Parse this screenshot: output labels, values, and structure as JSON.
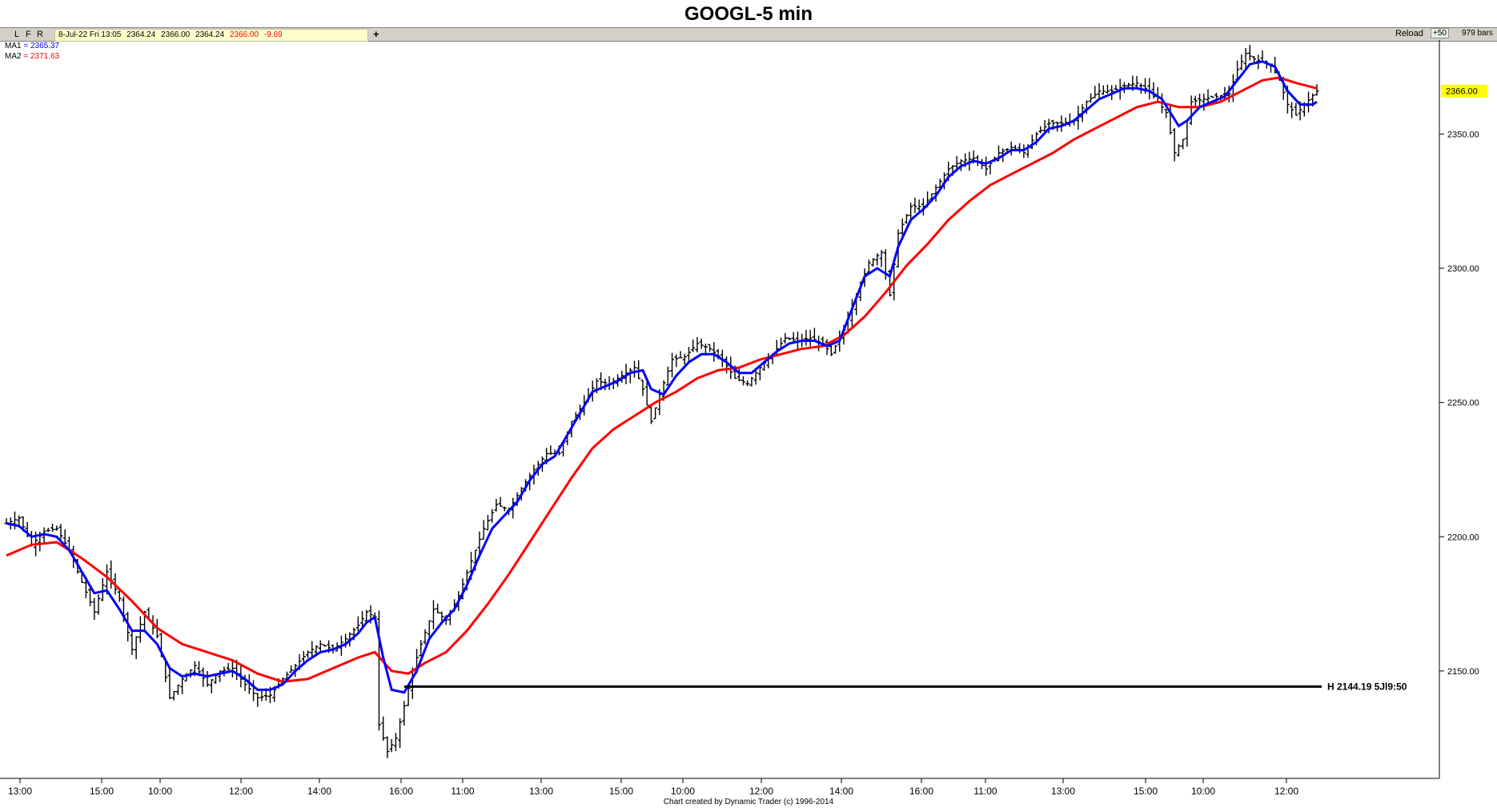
{
  "title": "GOOGL-5 min",
  "toolbar": {
    "buttons": [
      "L",
      "F",
      "R"
    ],
    "info": {
      "date": "8-Jul-22 Fri 13:05",
      "open": "2364.24",
      "high": "2366.00",
      "low": "2364.24",
      "close": "2366.00",
      "change": "-9.69"
    },
    "plus": "+",
    "reload": "Reload",
    "plus50": "+50",
    "bars": "979 bars"
  },
  "legend": {
    "ma1_label": "MA1",
    "ma1_value": "= 2365.37",
    "ma2_label": "MA2",
    "ma2_value": "= 2371.63"
  },
  "colors": {
    "price": "#000000",
    "ma1": "#0000ff",
    "ma2": "#ff0000",
    "price_tag_bg": "#ffff00"
  },
  "footer": "Chart created by Dynamic Trader  (c) 1996-2014",
  "chart_data": {
    "type": "bar",
    "ylim": [
      2110,
      2385
    ],
    "y_ticks": [
      2150,
      2200,
      2250,
      2300,
      2350
    ],
    "y_tick_labels": [
      "2150.00",
      "2200.00",
      "2250.00",
      "2300.00",
      "2350.00"
    ],
    "x_tick_labels": [
      "13:00",
      "15:00",
      "10:00",
      "12:00",
      "14:00",
      "16:00",
      "11:00",
      "13:00",
      "15:00",
      "10:00",
      "12:00",
      "14:00",
      "16:00",
      "11:00",
      "13:00",
      "15:00",
      "10:00",
      "12:00"
    ],
    "last_price_label": "2366.00",
    "horizontal_line": {
      "value": 2144.19,
      "label": "H 2144.19 5Jl9:50"
    },
    "price_path": [
      [
        0,
        2205
      ],
      [
        3,
        2207
      ],
      [
        6,
        2197
      ],
      [
        9,
        2202
      ],
      [
        12,
        2203
      ],
      [
        15,
        2195
      ],
      [
        18,
        2183
      ],
      [
        21,
        2172
      ],
      [
        24,
        2187
      ],
      [
        27,
        2177
      ],
      [
        30,
        2158
      ],
      [
        33,
        2172
      ],
      [
        36,
        2163
      ],
      [
        39,
        2140
      ],
      [
        42,
        2147
      ],
      [
        45,
        2152
      ],
      [
        48,
        2145
      ],
      [
        51,
        2150
      ],
      [
        54,
        2151
      ],
      [
        57,
        2145
      ],
      [
        60,
        2140
      ],
      [
        63,
        2141
      ],
      [
        66,
        2147
      ],
      [
        69,
        2152
      ],
      [
        72,
        2157
      ],
      [
        75,
        2160
      ],
      [
        78,
        2158
      ],
      [
        81,
        2162
      ],
      [
        84,
        2167
      ],
      [
        86,
        2172
      ],
      [
        88,
        2170
      ],
      [
        89,
        2130
      ],
      [
        91,
        2120
      ],
      [
        93,
        2125
      ],
      [
        95,
        2137
      ],
      [
        97,
        2150
      ],
      [
        99,
        2160
      ],
      [
        102,
        2173
      ],
      [
        105,
        2169
      ],
      [
        108,
        2178
      ],
      [
        111,
        2191
      ],
      [
        114,
        2203
      ],
      [
        117,
        2212
      ],
      [
        120,
        2210
      ],
      [
        123,
        2218
      ],
      [
        126,
        2225
      ],
      [
        129,
        2231
      ],
      [
        132,
        2231
      ],
      [
        135,
        2243
      ],
      [
        138,
        2250
      ],
      [
        141,
        2258
      ],
      [
        144,
        2257
      ],
      [
        147,
        2260
      ],
      [
        150,
        2263
      ],
      [
        152,
        2255
      ],
      [
        154,
        2243
      ],
      [
        156,
        2253
      ],
      [
        159,
        2266
      ],
      [
        162,
        2267
      ],
      [
        165,
        2272
      ],
      [
        168,
        2270
      ],
      [
        171,
        2266
      ],
      [
        174,
        2259
      ],
      [
        177,
        2257
      ],
      [
        180,
        2263
      ],
      [
        183,
        2268
      ],
      [
        186,
        2274
      ],
      [
        189,
        2273
      ],
      [
        192,
        2274
      ],
      [
        195,
        2272
      ],
      [
        197,
        2268
      ],
      [
        200,
        2277
      ],
      [
        203,
        2290
      ],
      [
        206,
        2302
      ],
      [
        209,
        2306
      ],
      [
        211,
        2290
      ],
      [
        213,
        2313
      ],
      [
        216,
        2323
      ],
      [
        219,
        2323
      ],
      [
        222,
        2330
      ],
      [
        225,
        2337
      ],
      [
        228,
        2340
      ],
      [
        231,
        2341
      ],
      [
        234,
        2337
      ],
      [
        237,
        2343
      ],
      [
        240,
        2345
      ],
      [
        243,
        2343
      ],
      [
        246,
        2350
      ],
      [
        249,
        2354
      ],
      [
        252,
        2354
      ],
      [
        255,
        2355
      ],
      [
        258,
        2362
      ],
      [
        261,
        2366
      ],
      [
        264,
        2366
      ],
      [
        267,
        2368
      ],
      [
        270,
        2369
      ],
      [
        273,
        2366
      ],
      [
        275,
        2362
      ],
      [
        277,
        2358
      ],
      [
        279,
        2343
      ],
      [
        281,
        2348
      ],
      [
        283,
        2362
      ],
      [
        286,
        2363
      ],
      [
        289,
        2364
      ],
      [
        292,
        2365
      ],
      [
        294,
        2374
      ],
      [
        296,
        2380
      ],
      [
        298,
        2378
      ],
      [
        300,
        2377
      ],
      [
        302,
        2376
      ],
      [
        304,
        2370
      ],
      [
        306,
        2361
      ],
      [
        308,
        2357
      ],
      [
        310,
        2361
      ],
      [
        313,
        2366
      ]
    ],
    "series": [
      {
        "name": "MA1",
        "values": [
          [
            0,
            2205
          ],
          [
            3,
            2204
          ],
          [
            6,
            2200
          ],
          [
            9,
            2201
          ],
          [
            12,
            2200
          ],
          [
            15,
            2195
          ],
          [
            18,
            2187
          ],
          [
            21,
            2179
          ],
          [
            24,
            2180
          ],
          [
            27,
            2173
          ],
          [
            30,
            2165
          ],
          [
            33,
            2165
          ],
          [
            36,
            2160
          ],
          [
            39,
            2151
          ],
          [
            42,
            2148
          ],
          [
            45,
            2149
          ],
          [
            48,
            2148
          ],
          [
            51,
            2149
          ],
          [
            54,
            2150
          ],
          [
            57,
            2147
          ],
          [
            60,
            2143
          ],
          [
            63,
            2143
          ],
          [
            66,
            2145
          ],
          [
            69,
            2150
          ],
          [
            72,
            2154
          ],
          [
            75,
            2157
          ],
          [
            78,
            2158
          ],
          [
            81,
            2160
          ],
          [
            84,
            2164
          ],
          [
            86,
            2168
          ],
          [
            88,
            2170
          ],
          [
            90,
            2155
          ],
          [
            92,
            2143
          ],
          [
            95,
            2142
          ],
          [
            98,
            2150
          ],
          [
            101,
            2162
          ],
          [
            104,
            2168
          ],
          [
            107,
            2173
          ],
          [
            110,
            2182
          ],
          [
            113,
            2193
          ],
          [
            116,
            2203
          ],
          [
            119,
            2208
          ],
          [
            122,
            2213
          ],
          [
            125,
            2221
          ],
          [
            128,
            2227
          ],
          [
            131,
            2230
          ],
          [
            134,
            2238
          ],
          [
            137,
            2246
          ],
          [
            140,
            2254
          ],
          [
            143,
            2256
          ],
          [
            146,
            2258
          ],
          [
            149,
            2261
          ],
          [
            152,
            2262
          ],
          [
            154,
            2255
          ],
          [
            157,
            2253
          ],
          [
            160,
            2260
          ],
          [
            163,
            2265
          ],
          [
            166,
            2268
          ],
          [
            169,
            2268
          ],
          [
            172,
            2265
          ],
          [
            175,
            2261
          ],
          [
            178,
            2261
          ],
          [
            181,
            2265
          ],
          [
            184,
            2269
          ],
          [
            187,
            2272
          ],
          [
            190,
            2273
          ],
          [
            193,
            2273
          ],
          [
            196,
            2271
          ],
          [
            199,
            2273
          ],
          [
            202,
            2285
          ],
          [
            205,
            2297
          ],
          [
            208,
            2300
          ],
          [
            211,
            2297
          ],
          [
            213,
            2308
          ],
          [
            216,
            2318
          ],
          [
            219,
            2322
          ],
          [
            222,
            2327
          ],
          [
            225,
            2334
          ],
          [
            228,
            2338
          ],
          [
            231,
            2340
          ],
          [
            234,
            2339
          ],
          [
            237,
            2341
          ],
          [
            240,
            2344
          ],
          [
            243,
            2344
          ],
          [
            246,
            2347
          ],
          [
            249,
            2352
          ],
          [
            252,
            2353
          ],
          [
            255,
            2355
          ],
          [
            258,
            2359
          ],
          [
            261,
            2363
          ],
          [
            264,
            2365
          ],
          [
            267,
            2367
          ],
          [
            270,
            2367
          ],
          [
            273,
            2366
          ],
          [
            276,
            2363
          ],
          [
            278,
            2358
          ],
          [
            280,
            2353
          ],
          [
            282,
            2355
          ],
          [
            285,
            2360
          ],
          [
            288,
            2362
          ],
          [
            291,
            2364
          ],
          [
            294,
            2370
          ],
          [
            297,
            2376
          ],
          [
            300,
            2377
          ],
          [
            303,
            2375
          ],
          [
            306,
            2366
          ],
          [
            309,
            2361
          ],
          [
            312,
            2361
          ],
          [
            313,
            2362
          ]
        ]
      },
      {
        "name": "MA2",
        "values": [
          [
            0,
            2193
          ],
          [
            6,
            2197
          ],
          [
            12,
            2198
          ],
          [
            18,
            2192
          ],
          [
            24,
            2185
          ],
          [
            30,
            2176
          ],
          [
            36,
            2166
          ],
          [
            42,
            2160
          ],
          [
            48,
            2157
          ],
          [
            54,
            2154
          ],
          [
            60,
            2149
          ],
          [
            66,
            2146
          ],
          [
            72,
            2147
          ],
          [
            78,
            2151
          ],
          [
            84,
            2155
          ],
          [
            88,
            2157
          ],
          [
            92,
            2150
          ],
          [
            96,
            2149
          ],
          [
            100,
            2153
          ],
          [
            105,
            2157
          ],
          [
            110,
            2165
          ],
          [
            115,
            2175
          ],
          [
            120,
            2186
          ],
          [
            125,
            2198
          ],
          [
            130,
            2210
          ],
          [
            135,
            2222
          ],
          [
            140,
            2233
          ],
          [
            145,
            2240
          ],
          [
            150,
            2245
          ],
          [
            155,
            2250
          ],
          [
            160,
            2254
          ],
          [
            165,
            2259
          ],
          [
            170,
            2262
          ],
          [
            175,
            2263
          ],
          [
            180,
            2266
          ],
          [
            185,
            2268
          ],
          [
            190,
            2270
          ],
          [
            195,
            2271
          ],
          [
            200,
            2275
          ],
          [
            205,
            2282
          ],
          [
            210,
            2291
          ],
          [
            215,
            2301
          ],
          [
            220,
            2309
          ],
          [
            225,
            2318
          ],
          [
            230,
            2325
          ],
          [
            235,
            2331
          ],
          [
            240,
            2335
          ],
          [
            245,
            2339
          ],
          [
            250,
            2343
          ],
          [
            255,
            2348
          ],
          [
            260,
            2352
          ],
          [
            265,
            2356
          ],
          [
            270,
            2360
          ],
          [
            275,
            2362
          ],
          [
            280,
            2360
          ],
          [
            285,
            2360
          ],
          [
            290,
            2362
          ],
          [
            295,
            2366
          ],
          [
            300,
            2370
          ],
          [
            304,
            2371
          ],
          [
            308,
            2369
          ],
          [
            313,
            2367
          ]
        ]
      }
    ]
  }
}
